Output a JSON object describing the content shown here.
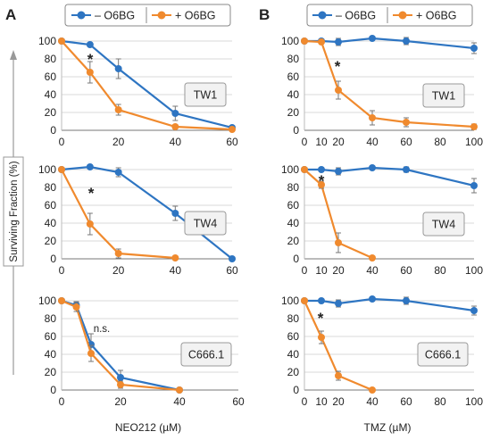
{
  "panel_a": {
    "letter": "A",
    "xlabel": "NEO212 (µM)"
  },
  "panel_b": {
    "letter": "B",
    "xlabel": "TMZ (µM)"
  },
  "ylabel": "Surviving Fraction (%)",
  "legend": {
    "minus_label": "– O6BG",
    "plus_label": "+ O6BG"
  },
  "colors": {
    "minus": "#2e75c2",
    "plus": "#f08a2e"
  },
  "chart_data": [
    {
      "type": "line",
      "panel": "A",
      "cell_line": "TW1",
      "annotation": "*",
      "x": [
        0,
        10,
        20,
        40,
        60
      ],
      "xlim": [
        0,
        60
      ],
      "xticks": [
        0,
        20,
        40,
        60
      ],
      "ylim": [
        0,
        100
      ],
      "yticks": [
        0,
        20,
        40,
        60,
        80,
        100
      ],
      "series": [
        {
          "name": "– O6BG",
          "x": [
            0,
            10,
            20,
            40,
            60
          ],
          "y": [
            100,
            96,
            69,
            19,
            3
          ],
          "err": [
            0,
            2,
            11,
            8,
            1
          ]
        },
        {
          "name": "+ O6BG",
          "x": [
            0,
            10,
            20,
            40,
            60
          ],
          "y": [
            100,
            65,
            23,
            4,
            1
          ],
          "err": [
            0,
            12,
            6,
            2,
            0
          ]
        }
      ]
    },
    {
      "type": "line",
      "panel": "A",
      "cell_line": "TW4",
      "annotation": "*",
      "x": [
        0,
        10,
        20,
        40,
        60
      ],
      "xlim": [
        0,
        60
      ],
      "xticks": [
        0,
        20,
        40,
        60
      ],
      "ylim": [
        0,
        100
      ],
      "yticks": [
        0,
        20,
        40,
        60,
        80,
        100
      ],
      "series": [
        {
          "name": "– O6BG",
          "x": [
            0,
            10,
            20,
            40,
            60
          ],
          "y": [
            100,
            103,
            97,
            51,
            0
          ],
          "err": [
            0,
            1,
            5,
            8,
            0
          ]
        },
        {
          "name": "+ O6BG",
          "x": [
            0,
            10,
            20,
            40
          ],
          "y": [
            100,
            39,
            6,
            1
          ],
          "err": [
            0,
            12,
            5,
            1
          ]
        }
      ]
    },
    {
      "type": "line",
      "panel": "A",
      "cell_line": "C666.1",
      "annotation": "n.s.",
      "x": [
        0,
        5,
        10,
        20,
        40
      ],
      "xlim": [
        0,
        60
      ],
      "xticks": [
        0,
        20,
        40,
        60
      ],
      "ylim": [
        0,
        100
      ],
      "yticks": [
        0,
        20,
        40,
        60,
        80,
        100
      ],
      "series": [
        {
          "name": "– O6BG",
          "x": [
            0,
            5,
            10,
            20,
            40
          ],
          "y": [
            100,
            95,
            51,
            14,
            0
          ],
          "err": [
            0,
            4,
            12,
            8,
            0
          ]
        },
        {
          "name": "+ O6BG",
          "x": [
            0,
            5,
            10,
            20,
            40
          ],
          "y": [
            100,
            93,
            41,
            6,
            0
          ],
          "err": [
            0,
            5,
            9,
            4,
            0
          ]
        }
      ]
    },
    {
      "type": "line",
      "panel": "B",
      "cell_line": "TW1",
      "annotation": "*",
      "x": [
        0,
        10,
        20,
        40,
        60,
        100
      ],
      "xlim": [
        0,
        100
      ],
      "xticks": [
        0,
        10,
        20,
        40,
        60,
        80,
        100
      ],
      "ylim": [
        0,
        100
      ],
      "yticks": [
        0,
        20,
        40,
        60,
        80,
        100
      ],
      "series": [
        {
          "name": "– O6BG",
          "x": [
            0,
            10,
            20,
            40,
            60,
            100
          ],
          "y": [
            100,
            100,
            99,
            103,
            100,
            92
          ],
          "err": [
            0,
            1,
            4,
            2,
            4,
            6
          ]
        },
        {
          "name": "+ O6BG",
          "x": [
            0,
            10,
            20,
            40,
            60,
            100
          ],
          "y": [
            100,
            99,
            45,
            14,
            9,
            4
          ],
          "err": [
            0,
            2,
            10,
            8,
            5,
            3
          ]
        }
      ]
    },
    {
      "type": "line",
      "panel": "B",
      "cell_line": "TW4",
      "annotation": "*",
      "x": [
        0,
        10,
        20,
        40,
        60,
        100
      ],
      "xlim": [
        0,
        100
      ],
      "xticks": [
        0,
        10,
        20,
        40,
        60,
        80,
        100
      ],
      "ylim": [
        0,
        100
      ],
      "yticks": [
        0,
        20,
        40,
        60,
        80,
        100
      ],
      "series": [
        {
          "name": "– O6BG",
          "x": [
            0,
            10,
            20,
            40,
            60,
            100
          ],
          "y": [
            100,
            100,
            98,
            102,
            100,
            82
          ],
          "err": [
            0,
            1,
            4,
            2,
            3,
            8
          ]
        },
        {
          "name": "+ O6BG",
          "x": [
            0,
            10,
            20,
            40
          ],
          "y": [
            100,
            83,
            18,
            1
          ],
          "err": [
            0,
            4,
            11,
            1
          ]
        }
      ]
    },
    {
      "type": "line",
      "panel": "B",
      "cell_line": "C666.1",
      "annotation": "*",
      "x": [
        0,
        10,
        20,
        40,
        60,
        100
      ],
      "xlim": [
        0,
        100
      ],
      "xticks": [
        0,
        10,
        20,
        40,
        60,
        80,
        100
      ],
      "ylim": [
        0,
        100
      ],
      "yticks": [
        0,
        20,
        40,
        60,
        80,
        100
      ],
      "series": [
        {
          "name": "– O6BG",
          "x": [
            0,
            10,
            20,
            40,
            60,
            100
          ],
          "y": [
            100,
            100,
            97,
            102,
            100,
            89
          ],
          "err": [
            0,
            1,
            4,
            2,
            4,
            5
          ]
        },
        {
          "name": "+ O6BG",
          "x": [
            0,
            10,
            20,
            40
          ],
          "y": [
            100,
            59,
            16,
            0
          ],
          "err": [
            0,
            7,
            5,
            0
          ]
        }
      ]
    }
  ]
}
